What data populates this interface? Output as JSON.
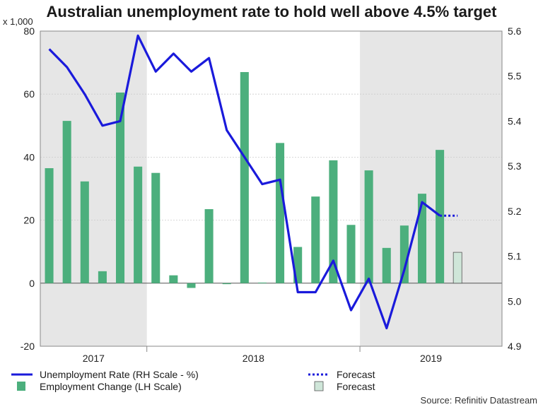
{
  "colors": {
    "bar": "#4caf7d",
    "forecast_bar": "#cfe6d9",
    "line": "#1a1adb",
    "shade": "#e6e6e6",
    "grid": "#cccccc"
  },
  "chart_data": {
    "type": "bar+line",
    "title": "Australian unemployment rate to hold well above 4.5% target",
    "left_axis": {
      "unit": "x 1,000",
      "min": -20,
      "max": 80,
      "ticks": [
        -20,
        0,
        20,
        40,
        60,
        80
      ]
    },
    "right_axis": {
      "min": 4.9,
      "max": 5.6,
      "ticks": [
        "4.9",
        "5.0",
        "5.1",
        "5.2",
        "5.3",
        "5.4",
        "5.5",
        "5.6"
      ]
    },
    "x_axis": {
      "years": [
        "2017",
        "2018",
        "2019"
      ],
      "num_months": 26
    },
    "shaded_years": [
      "2017",
      "2019"
    ],
    "series": [
      {
        "name": "Employment Change (LH Scale)",
        "type": "bar",
        "axis": "left",
        "values": [
          36.5,
          51.5,
          32.3,
          3.8,
          60.5,
          37.0,
          35.0,
          2.5,
          -1.5,
          23.5,
          -0.3,
          67.0,
          0.2,
          44.5,
          11.5,
          27.5,
          39.0,
          18.5,
          35.8,
          11.2,
          18.3,
          28.4,
          42.3
        ]
      },
      {
        "name": "Forecast",
        "type": "bar",
        "axis": "left",
        "index": 23,
        "values": [
          9.8
        ]
      },
      {
        "name": "Unemployment Rate (RH Scale - %)",
        "type": "line",
        "axis": "right",
        "values": [
          5.56,
          5.52,
          5.46,
          5.39,
          5.4,
          5.59,
          5.51,
          5.55,
          5.51,
          5.54,
          5.38,
          5.32,
          5.26,
          5.27,
          5.02,
          5.02,
          5.09,
          4.98,
          5.05,
          4.94,
          5.07,
          5.22,
          5.19
        ]
      },
      {
        "name": "Forecast",
        "type": "line-dotted",
        "axis": "right",
        "start_index": 22,
        "values": [
          5.19,
          5.19
        ]
      }
    ],
    "legend": {
      "line_label": "Unemployment Rate (RH Scale - %)",
      "bar_label": "Employment Change (LH Scale)",
      "line_forecast_label": "Forecast",
      "bar_forecast_label": "Forecast"
    },
    "source": "Source: Refinitiv Datastream"
  }
}
